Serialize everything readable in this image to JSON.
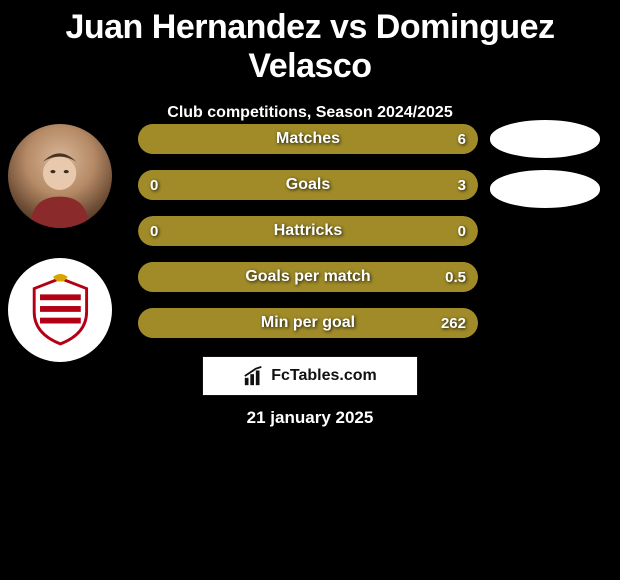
{
  "title": "Juan Hernandez vs Dominguez Velasco",
  "subtitle": "Club competitions, Season 2024/2025",
  "date": "21 january 2025",
  "brand": "FcTables.com",
  "colors": {
    "background": "#000000",
    "bar_base": "#a08b28",
    "bar_highlight": "#c7ad33",
    "text": "#ffffff",
    "brand_box_bg": "#ffffff",
    "brand_text": "#111111"
  },
  "left_player": {
    "name": "Juan Hernandez",
    "avatar_icon": "player-photo",
    "club_icon": "club-badge"
  },
  "right_player": {
    "name": "Dominguez Velasco",
    "avatar_icon": "player-silhouette",
    "club_icon": "club-silhouette"
  },
  "rows": [
    {
      "label": "Matches",
      "left_value": "",
      "right_value": "6",
      "left_fill_pct": 0,
      "right_fill_pct": 100,
      "left_color": "#a08b28",
      "right_color": "#a08b28",
      "base_color": "#a08b28"
    },
    {
      "label": "Goals",
      "left_value": "0",
      "right_value": "3",
      "left_fill_pct": 0,
      "right_fill_pct": 100,
      "left_color": "#a08b28",
      "right_color": "#a08b28",
      "base_color": "#a08b28"
    },
    {
      "label": "Hattricks",
      "left_value": "0",
      "right_value": "0",
      "left_fill_pct": 0,
      "right_fill_pct": 0,
      "left_color": "#a08b28",
      "right_color": "#a08b28",
      "base_color": "#a08b28"
    },
    {
      "label": "Goals per match",
      "left_value": "",
      "right_value": "0.5",
      "left_fill_pct": 0,
      "right_fill_pct": 100,
      "left_color": "#a08b28",
      "right_color": "#a08b28",
      "base_color": "#a08b28"
    },
    {
      "label": "Min per goal",
      "left_value": "",
      "right_value": "262",
      "left_fill_pct": 0,
      "right_fill_pct": 100,
      "left_color": "#a08b28",
      "right_color": "#a08b28",
      "base_color": "#a08b28"
    }
  ]
}
